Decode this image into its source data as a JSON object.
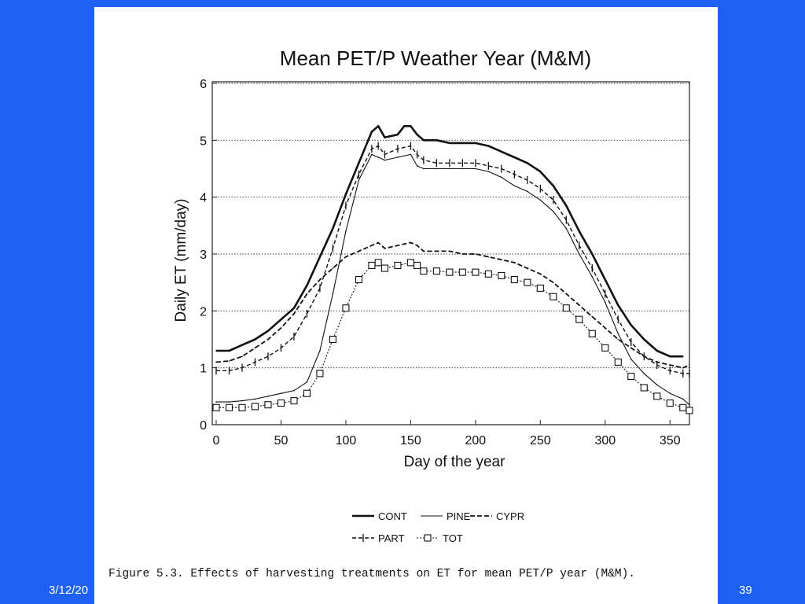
{
  "slide": {
    "date": "3/12/20",
    "page_number": "39"
  },
  "figure": {
    "caption": "Figure 5.3. Effects of harvesting treatments on ET for mean PET/P year (M&M)."
  },
  "chart_data": {
    "type": "line",
    "title": "Mean PET/P Weather Year (M&M)",
    "xlabel": "Day of the year",
    "ylabel": "Daily ET (mm/day)",
    "xlim": [
      0,
      365
    ],
    "ylim": [
      0,
      6
    ],
    "xticks": [
      0,
      50,
      100,
      150,
      200,
      250,
      300,
      350
    ],
    "yticks": [
      0,
      1,
      2,
      3,
      4,
      5,
      6
    ],
    "grid": "horizontal dotted",
    "legend_position": "bottom",
    "series": [
      {
        "name": "CONT",
        "style": "thick-solid",
        "x": [
          0,
          10,
          20,
          30,
          40,
          50,
          60,
          70,
          80,
          90,
          100,
          110,
          120,
          125,
          130,
          140,
          145,
          150,
          155,
          160,
          170,
          180,
          190,
          200,
          210,
          220,
          230,
          240,
          250,
          260,
          270,
          280,
          290,
          300,
          310,
          320,
          330,
          340,
          350,
          360
        ],
        "y": [
          1.3,
          1.3,
          1.4,
          1.5,
          1.65,
          1.85,
          2.05,
          2.45,
          2.95,
          3.45,
          4.05,
          4.6,
          5.15,
          5.25,
          5.05,
          5.1,
          5.25,
          5.25,
          5.1,
          5.0,
          5.0,
          4.95,
          4.95,
          4.95,
          4.9,
          4.8,
          4.7,
          4.6,
          4.45,
          4.2,
          3.85,
          3.4,
          3.0,
          2.55,
          2.1,
          1.75,
          1.5,
          1.3,
          1.2,
          1.2
        ]
      },
      {
        "name": "PINE",
        "style": "thin-solid",
        "x": [
          0,
          10,
          20,
          30,
          40,
          50,
          60,
          70,
          80,
          90,
          100,
          110,
          120,
          125,
          130,
          140,
          150,
          155,
          160,
          170,
          180,
          190,
          200,
          210,
          220,
          230,
          240,
          250,
          260,
          270,
          280,
          290,
          300,
          310,
          320,
          330,
          340,
          350,
          360,
          365
        ],
        "y": [
          0.4,
          0.4,
          0.42,
          0.45,
          0.5,
          0.55,
          0.6,
          0.75,
          1.3,
          2.3,
          3.4,
          4.3,
          4.75,
          4.7,
          4.65,
          4.7,
          4.75,
          4.55,
          4.5,
          4.5,
          4.5,
          4.5,
          4.5,
          4.45,
          4.35,
          4.2,
          4.1,
          3.95,
          3.75,
          3.45,
          3.0,
          2.6,
          2.15,
          1.6,
          1.15,
          0.9,
          0.7,
          0.55,
          0.45,
          0.35
        ]
      },
      {
        "name": "CYPR",
        "style": "dashed",
        "x": [
          0,
          10,
          20,
          30,
          40,
          50,
          60,
          70,
          80,
          90,
          100,
          110,
          120,
          125,
          130,
          140,
          150,
          155,
          160,
          170,
          180,
          190,
          200,
          210,
          220,
          230,
          240,
          250,
          260,
          270,
          280,
          290,
          300,
          310,
          320,
          330,
          340,
          350,
          360,
          365
        ],
        "y": [
          1.1,
          1.12,
          1.2,
          1.35,
          1.5,
          1.7,
          1.95,
          2.3,
          2.55,
          2.75,
          2.95,
          3.05,
          3.15,
          3.2,
          3.1,
          3.15,
          3.2,
          3.15,
          3.05,
          3.05,
          3.05,
          3.0,
          3.0,
          2.95,
          2.9,
          2.85,
          2.75,
          2.65,
          2.5,
          2.3,
          2.1,
          1.9,
          1.7,
          1.5,
          1.35,
          1.2,
          1.1,
          1.05,
          1.0,
          1.05
        ]
      },
      {
        "name": "PART",
        "style": "dash-tick",
        "x": [
          0,
          10,
          20,
          30,
          40,
          50,
          60,
          70,
          80,
          90,
          100,
          110,
          120,
          125,
          130,
          140,
          150,
          155,
          160,
          170,
          180,
          190,
          200,
          210,
          220,
          230,
          240,
          250,
          260,
          270,
          280,
          290,
          300,
          310,
          320,
          330,
          340,
          350,
          360,
          365
        ],
        "y": [
          0.95,
          0.95,
          1.0,
          1.1,
          1.2,
          1.35,
          1.55,
          1.95,
          2.4,
          3.1,
          3.85,
          4.4,
          4.85,
          4.9,
          4.75,
          4.85,
          4.9,
          4.75,
          4.65,
          4.6,
          4.6,
          4.6,
          4.6,
          4.55,
          4.5,
          4.4,
          4.3,
          4.15,
          3.95,
          3.6,
          3.15,
          2.75,
          2.3,
          1.85,
          1.45,
          1.2,
          1.05,
          0.95,
          0.9,
          0.9
        ]
      },
      {
        "name": "TOT",
        "style": "dotted-square",
        "x": [
          0,
          10,
          20,
          30,
          40,
          50,
          60,
          70,
          80,
          90,
          100,
          110,
          120,
          125,
          130,
          140,
          150,
          155,
          160,
          170,
          180,
          190,
          200,
          210,
          220,
          230,
          240,
          250,
          260,
          270,
          280,
          290,
          300,
          310,
          320,
          330,
          340,
          350,
          360,
          365
        ],
        "y": [
          0.3,
          0.3,
          0.3,
          0.32,
          0.35,
          0.38,
          0.42,
          0.55,
          0.9,
          1.5,
          2.05,
          2.55,
          2.8,
          2.85,
          2.75,
          2.8,
          2.85,
          2.8,
          2.7,
          2.7,
          2.68,
          2.68,
          2.68,
          2.65,
          2.62,
          2.55,
          2.5,
          2.4,
          2.25,
          2.05,
          1.85,
          1.6,
          1.35,
          1.1,
          0.85,
          0.65,
          0.5,
          0.38,
          0.3,
          0.25
        ]
      }
    ]
  }
}
